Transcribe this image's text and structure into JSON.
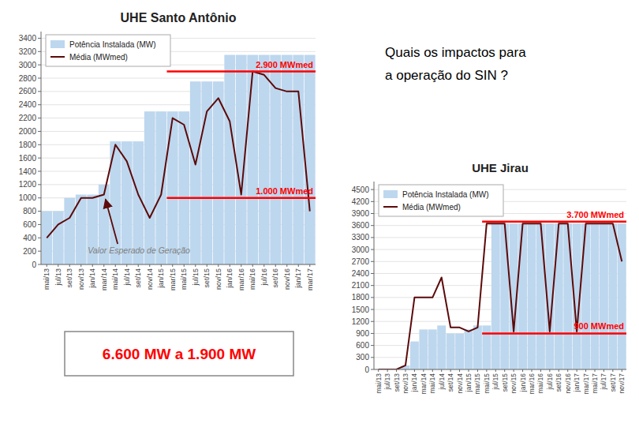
{
  "chart_data": [
    {
      "type": "bar",
      "title": "UHE Santo Antônio",
      "categories": [
        "mai/13",
        "jul/13",
        "set/13",
        "nov/13",
        "jan/14",
        "mar/14",
        "mai/14",
        "jul/14",
        "set/14",
        "nov/14",
        "jan/15",
        "mar/15",
        "mai/15",
        "jul/15",
        "set/15",
        "nov/15",
        "jan/16",
        "mar/16",
        "mai/16",
        "jul/16",
        "set/16",
        "nov/16",
        "jan/17",
        "mar/17"
      ],
      "series": [
        {
          "name": "Potência Instalada (MW)",
          "type": "bar",
          "color": "#BDD7EE",
          "values": [
            800,
            800,
            1000,
            1050,
            1050,
            1200,
            1850,
            1850,
            1850,
            2300,
            2300,
            2300,
            2300,
            2750,
            2750,
            2750,
            3150,
            3150,
            3150,
            3150,
            3150,
            3150,
            3150,
            3150
          ]
        },
        {
          "name": "Média (MWmed)",
          "type": "line",
          "color": "#5C0A0A",
          "values": [
            400,
            600,
            700,
            1000,
            1000,
            1050,
            1800,
            1550,
            1050,
            700,
            1050,
            2200,
            2100,
            1500,
            2300,
            2500,
            2150,
            1050,
            2900,
            2850,
            2650,
            2600,
            2600,
            800
          ]
        }
      ],
      "ylim": [
        0,
        3500
      ],
      "yticks": [
        0,
        200,
        400,
        600,
        800,
        1000,
        1200,
        1400,
        1600,
        1800,
        2000,
        2200,
        2400,
        2600,
        2800,
        3000,
        3200,
        3400
      ],
      "grid": true,
      "legend": "upper left",
      "reference_lines": [
        {
          "value": 2900,
          "label": "2.900 MWmed",
          "from": "mar/15",
          "color": "#FF0000"
        },
        {
          "value": 1000,
          "label": "1.000 MWmed",
          "from": "mar/15",
          "color": "#FF0000"
        }
      ],
      "annotations": [
        {
          "text": "Valor Esperado de Geração"
        }
      ]
    },
    {
      "type": "bar",
      "title": "UHE Jirau",
      "categories": [
        "mai/13",
        "jul/13",
        "set/13",
        "nov/13",
        "jan/14",
        "mar/14",
        "mai/14",
        "jul/14",
        "set/14",
        "nov/14",
        "jan/15",
        "mar/15",
        "mai/15",
        "jul/15",
        "set/15",
        "nov/15",
        "jan/16",
        "mar/16",
        "mai/16",
        "jul/16",
        "set/16",
        "nov/16",
        "jan/17",
        "mar/17",
        "mai/17",
        "jul/17",
        "set/17",
        "nov/17"
      ],
      "series": [
        {
          "name": "Potência Instalada (MW)",
          "type": "bar",
          "color": "#BDD7EE",
          "values": [
            0,
            0,
            0,
            100,
            700,
            1000,
            1000,
            1100,
            900,
            900,
            1000,
            1100,
            1100,
            3650,
            3650,
            3650,
            3650,
            3650,
            3650,
            3650,
            3650,
            3650,
            3650,
            3650,
            3650,
            3650,
            3650,
            3650
          ]
        },
        {
          "name": "Média (MWmed)",
          "type": "line",
          "color": "#5C0A0A",
          "values": [
            0,
            0,
            0,
            100,
            1800,
            1800,
            1800,
            2300,
            1050,
            1050,
            950,
            1050,
            3650,
            3650,
            3650,
            950,
            3650,
            3650,
            3650,
            950,
            3650,
            3650,
            950,
            3650,
            3650,
            3650,
            3650,
            2700
          ]
        }
      ],
      "ylim": [
        0,
        4700
      ],
      "yticks": [
        0,
        300,
        600,
        900,
        1200,
        1500,
        1800,
        2100,
        2400,
        2700,
        3000,
        3300,
        3600,
        3900,
        4200,
        4500
      ],
      "grid": true,
      "legend": "upper left",
      "reference_lines": [
        {
          "value": 3700,
          "label": "3.700 MWmed",
          "from": "mai/15",
          "color": "#FF0000"
        },
        {
          "value": 900,
          "label": "900 MWmed",
          "from": "mai/15",
          "color": "#FF0000"
        }
      ]
    }
  ],
  "annotations": [
    {
      "text": "Quais os impactos para\na operação do SIN ?"
    },
    {
      "text": "6.600 MW a 1.900 MW",
      "color": "#FF0000"
    }
  ]
}
